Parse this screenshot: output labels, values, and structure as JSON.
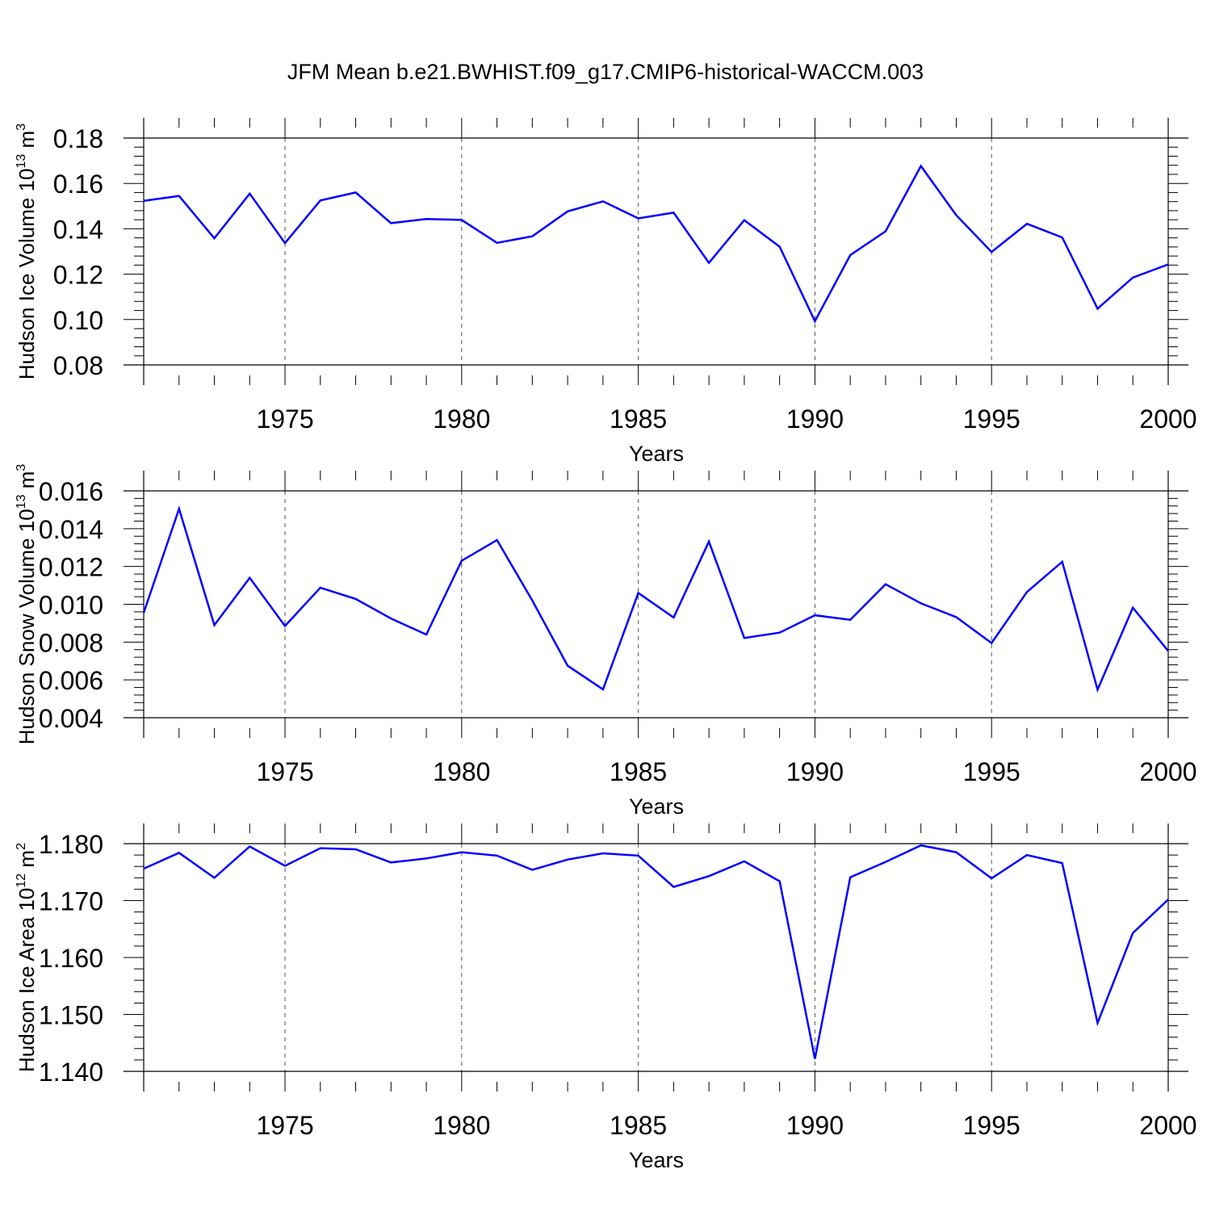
{
  "title": "JFM Mean b.e21.BWHIST.f09_g17.CMIP6-historical-WACCM.003",
  "colors": {
    "line": "#0000ff",
    "axis": "#000000",
    "grid": "#555555"
  },
  "chart_data": [
    {
      "type": "line",
      "ylabel_main": "Hudson Ice Volume 10",
      "ylabel_exp": "13",
      "ylabel_unit": " m",
      "ylabel_unit_exp": "3",
      "xlabel": "Years",
      "xlim": [
        1971,
        2000
      ],
      "ylim": [
        0.08,
        0.18
      ],
      "yticks": [
        0.08,
        0.1,
        0.12,
        0.14,
        0.16,
        0.18
      ],
      "ytick_labels": [
        "0.08",
        "0.10",
        "0.12",
        "0.14",
        "0.16",
        "0.18"
      ],
      "xticks": [
        1975,
        1980,
        1985,
        1990,
        1995,
        2000
      ],
      "xtick_labels": [
        "1975",
        "1980",
        "1985",
        "1990",
        "1995",
        "2000"
      ],
      "x": [
        1971,
        1972,
        1973,
        1974,
        1975,
        1976,
        1977,
        1978,
        1979,
        1980,
        1981,
        1982,
        1983,
        1984,
        1985,
        1986,
        1987,
        1988,
        1989,
        1990,
        1991,
        1992,
        1993,
        1994,
        1995,
        1996,
        1997,
        1998,
        1999,
        2000
      ],
      "series": [
        {
          "name": "Hudson Ice Volume",
          "values": [
            0.1523,
            0.1545,
            0.1358,
            0.1555,
            0.1337,
            0.1525,
            0.156,
            0.1425,
            0.1443,
            0.1439,
            0.1338,
            0.1367,
            0.1477,
            0.1521,
            0.1446,
            0.1471,
            0.125,
            0.1438,
            0.1321,
            0.0993,
            0.1284,
            0.1389,
            0.1677,
            0.146,
            0.1298,
            0.1422,
            0.1362,
            0.1048,
            0.1185,
            0.1243
          ]
        }
      ]
    },
    {
      "type": "line",
      "ylabel_main": "Hudson Snow Volume 10",
      "ylabel_exp": "13",
      "ylabel_unit": " m",
      "ylabel_unit_exp": "3",
      "xlabel": "Years",
      "xlim": [
        1971,
        2000
      ],
      "ylim": [
        0.004,
        0.016
      ],
      "yticks": [
        0.004,
        0.006,
        0.008,
        0.01,
        0.012,
        0.014,
        0.016
      ],
      "ytick_labels": [
        "0.004",
        "0.006",
        "0.008",
        "0.010",
        "0.012",
        "0.014",
        "0.016"
      ],
      "xticks": [
        1975,
        1980,
        1985,
        1990,
        1995,
        2000
      ],
      "xtick_labels": [
        "1975",
        "1980",
        "1985",
        "1990",
        "1995",
        "2000"
      ],
      "x": [
        1971,
        1972,
        1973,
        1974,
        1975,
        1976,
        1977,
        1978,
        1979,
        1980,
        1981,
        1982,
        1983,
        1984,
        1985,
        1986,
        1987,
        1988,
        1989,
        1990,
        1991,
        1992,
        1993,
        1994,
        1995,
        1996,
        1997,
        1998,
        1999,
        2000
      ],
      "series": [
        {
          "name": "Hudson Snow Volume",
          "values": [
            0.00955,
            0.01505,
            0.0089,
            0.0114,
            0.00885,
            0.01088,
            0.01028,
            0.00925,
            0.0084,
            0.0123,
            0.0134,
            0.0102,
            0.00675,
            0.0055,
            0.0106,
            0.0093,
            0.01332,
            0.00822,
            0.0085,
            0.00942,
            0.00918,
            0.01106,
            0.01005,
            0.00932,
            0.00795,
            0.01065,
            0.01225,
            0.00548,
            0.00982,
            0.00753
          ]
        }
      ]
    },
    {
      "type": "line",
      "ylabel_main": "Hudson Ice Area 10",
      "ylabel_exp": "12",
      "ylabel_unit": " m",
      "ylabel_unit_exp": "2",
      "xlabel": "Years",
      "xlim": [
        1971,
        2000
      ],
      "ylim": [
        1.14,
        1.18
      ],
      "yticks": [
        1.14,
        1.15,
        1.16,
        1.17,
        1.18
      ],
      "ytick_labels": [
        "1.140",
        "1.150",
        "1.160",
        "1.170",
        "1.180"
      ],
      "xticks": [
        1975,
        1980,
        1985,
        1990,
        1995,
        2000
      ],
      "xtick_labels": [
        "1975",
        "1980",
        "1985",
        "1990",
        "1995",
        "2000"
      ],
      "x": [
        1971,
        1972,
        1973,
        1974,
        1975,
        1976,
        1977,
        1978,
        1979,
        1980,
        1981,
        1982,
        1983,
        1984,
        1985,
        1986,
        1987,
        1988,
        1989,
        1990,
        1991,
        1992,
        1993,
        1994,
        1995,
        1996,
        1997,
        1998,
        1999,
        2000
      ],
      "series": [
        {
          "name": "Hudson Ice Area",
          "values": [
            1.1756,
            1.1784,
            1.174,
            1.1795,
            1.1761,
            1.1792,
            1.179,
            1.1767,
            1.1774,
            1.1785,
            1.1779,
            1.1754,
            1.1772,
            1.1783,
            1.1779,
            1.1724,
            1.1743,
            1.1769,
            1.1734,
            1.1422,
            1.1741,
            1.1768,
            1.1797,
            1.1785,
            1.1739,
            1.178,
            1.1766,
            1.1485,
            1.1643,
            1.1702
          ]
        }
      ]
    }
  ]
}
